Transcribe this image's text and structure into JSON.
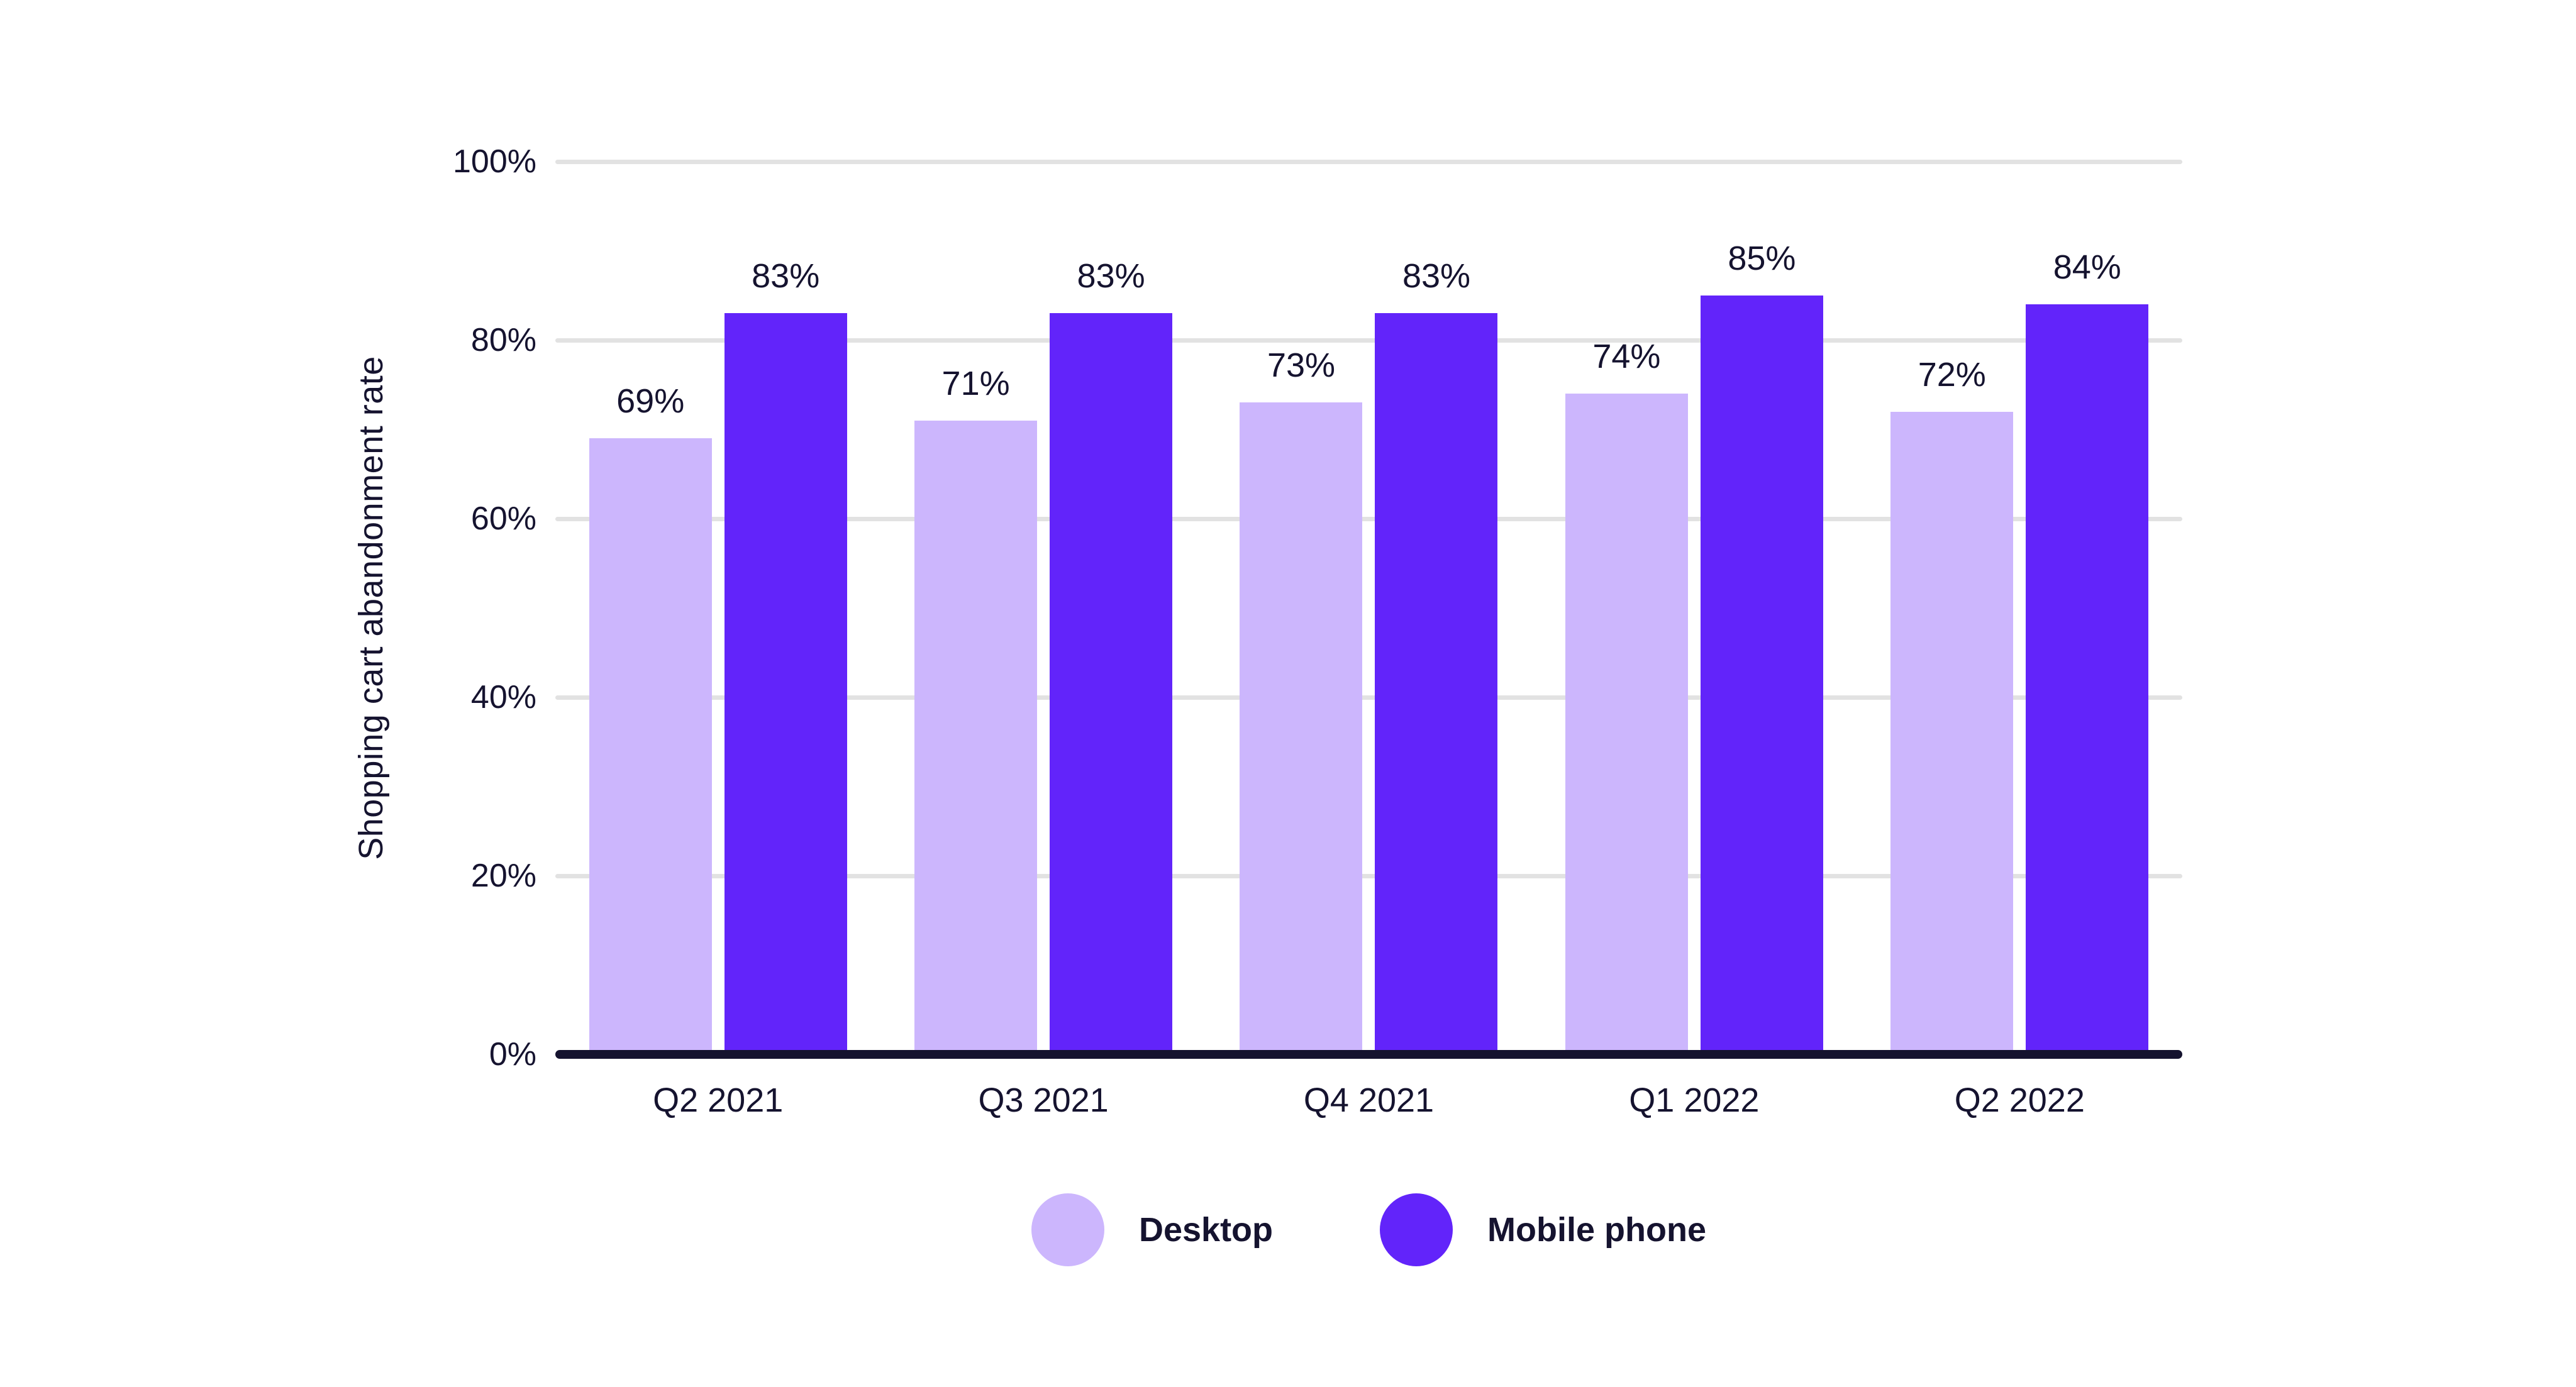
{
  "chart_data": {
    "type": "bar",
    "title": "",
    "xlabel": "",
    "ylabel": "Shopping cart abandonment rate",
    "categories": [
      "Q2 2021",
      "Q3 2021",
      "Q4 2021",
      "Q1 2022",
      "Q2 2022"
    ],
    "series": [
      {
        "name": "Desktop",
        "color": "#ccb6fd",
        "values": [
          69,
          71,
          73,
          74,
          72
        ]
      },
      {
        "name": "Mobile phone",
        "color": "#6224fa",
        "values": [
          83,
          83,
          83,
          85,
          84
        ]
      }
    ],
    "value_labels": [
      [
        "69%",
        "71%",
        "73%",
        "74%",
        "72%"
      ],
      [
        "83%",
        "83%",
        "83%",
        "85%",
        "84%"
      ]
    ],
    "yticks": [
      0,
      20,
      40,
      60,
      80,
      100
    ],
    "ytick_labels": [
      "0%",
      "20%",
      "40%",
      "60%",
      "80%",
      "100%"
    ],
    "ylim": [
      0,
      100
    ],
    "grid": "horizontal",
    "legend_position": "bottom-center",
    "colors": {
      "background": "#ffffff",
      "text": "#15132f",
      "gridline": "#e2e2e2",
      "axis_line": "#15132f",
      "desktop_bar": "#ccb6fd",
      "mobile_bar": "#6224fa"
    }
  }
}
